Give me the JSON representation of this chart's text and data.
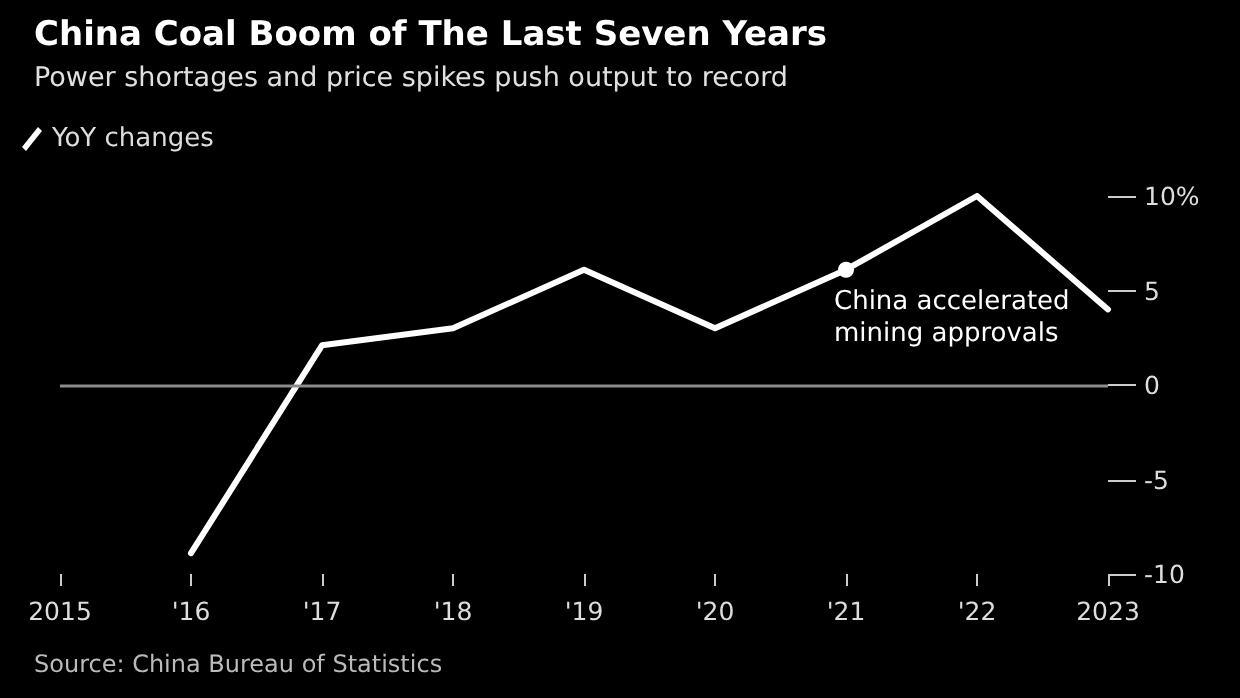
{
  "chart_data": {
    "type": "line",
    "title": "China Coal Boom of The Last Seven Years",
    "subtitle": "Power shortages and price spikes push output to record",
    "categories": [
      "2015",
      "'16",
      "'17",
      "'18",
      "'19",
      "'20",
      "'21",
      "'22",
      "2023"
    ],
    "series": [
      {
        "name": "YoY changes",
        "color": "#ffffff",
        "values": [
          null,
          -8.9,
          2.1,
          3.0,
          6.1,
          3.0,
          6.1,
          10.0,
          4.0
        ]
      }
    ],
    "ylim": [
      -10,
      10
    ],
    "yticks": [
      -10,
      -5,
      0,
      5,
      {
        "value": 10,
        "label": "10%"
      }
    ],
    "ref_lines": [
      {
        "axis": "y",
        "value": 0,
        "color": "#8c8c8c"
      }
    ],
    "legend": "top left",
    "marker": "none",
    "line_style": "solid",
    "annotations": [
      {
        "text": "China accelerated\nmining approvals",
        "x": "'21",
        "y": 6.1
      },
      "Source: China Bureau of Statistics"
    ]
  }
}
